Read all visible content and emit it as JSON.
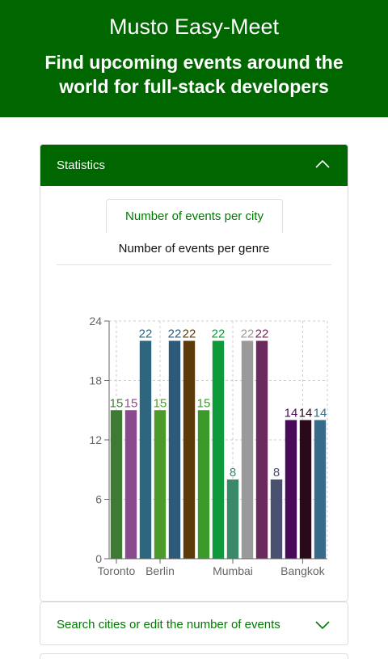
{
  "header": {
    "title": "Musto Easy-Meet",
    "subtitle": "Find upcoming events around the world for full-stack developers"
  },
  "statistics": {
    "label": "Statistics",
    "tabs": [
      {
        "label": "Number of events per city",
        "active": true
      },
      {
        "label": "Number of events per genre",
        "active": false
      }
    ]
  },
  "search_panel": {
    "label": "Search cities or edit the number of events"
  },
  "colors": {
    "brand": "#006600",
    "accent_text": "#007a00"
  },
  "chart_data": {
    "type": "bar",
    "categories": [
      "Toronto",
      "Berlin",
      "Mumbai",
      "Bangkok"
    ],
    "bars": [
      {
        "value": 15,
        "color": "#3e7a34"
      },
      {
        "value": 15,
        "color": "#8a4a8c"
      },
      {
        "value": 22,
        "color": "#2e6680"
      },
      {
        "value": 15,
        "color": "#4c9a2a"
      },
      {
        "value": 22,
        "color": "#2e5a7a"
      },
      {
        "value": 22,
        "color": "#5c3a0a"
      },
      {
        "value": 15,
        "color": "#3a9a2a"
      },
      {
        "value": 22,
        "color": "#0e9a3a"
      },
      {
        "value": 8,
        "color": "#3a8a6a"
      },
      {
        "value": 22,
        "color": "#9a9a9a"
      },
      {
        "value": 22,
        "color": "#6a2a5e"
      },
      {
        "value": 8,
        "color": "#4a5070"
      },
      {
        "value": 14,
        "color": "#4a0a5a"
      },
      {
        "value": 14,
        "color": "#2a0a1a"
      },
      {
        "value": 14,
        "color": "#3a6a8a"
      }
    ],
    "category_tick_positions": [
      0.5,
      3.5,
      8.5,
      13.3
    ],
    "yticks": [
      0,
      6,
      12,
      18,
      24
    ],
    "ylim": [
      0,
      24
    ],
    "grid": true
  }
}
